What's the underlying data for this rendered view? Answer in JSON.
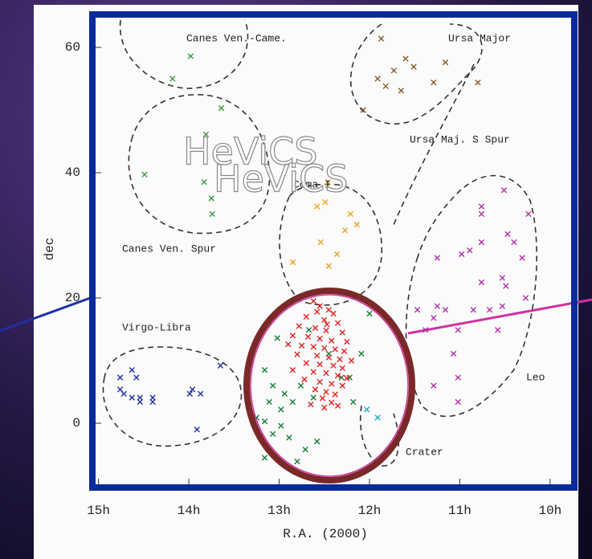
{
  "chart_data": {
    "type": "scatter",
    "xlabel": "R.A. (2000)",
    "ylabel": "dec",
    "xlim": [
      15.05,
      9.75
    ],
    "xticks": [
      {
        "value": 15,
        "label": "15h"
      },
      {
        "value": 14,
        "label": "14h"
      },
      {
        "value": 13,
        "label": "13h"
      },
      {
        "value": 12,
        "label": "12h"
      },
      {
        "value": 11,
        "label": "11h"
      },
      {
        "value": 10,
        "label": "10h"
      }
    ],
    "ylim": [
      -10,
      65
    ],
    "yticks": [
      0,
      20,
      40,
      60
    ],
    "annotations": [
      "Canes Ven.-Came.",
      "Ursa Major",
      "Ursa Maj. S Spur",
      "Coma I",
      "Canes Ven. Spur",
      "Virgo-Libra",
      "Leo",
      "Crater"
    ],
    "watermark": [
      "HeViCS",
      "HeViCS"
    ],
    "series": [
      {
        "color": "#3a9a3a",
        "x": [
          13.98,
          14.18,
          13.64,
          13.81,
          14.49,
          13.83,
          13.75,
          13.74
        ],
        "y": [
          58.6,
          55.0,
          50.3,
          46.1,
          39.7,
          38.5,
          35.9,
          33.4
        ]
      },
      {
        "color": "#8a5a2a",
        "x": [
          11.87,
          11.6,
          11.73,
          11.91,
          11.51,
          11.82,
          11.29,
          11.16,
          11.65,
          12.07,
          10.8
        ],
        "y": [
          61.4,
          58.2,
          56.3,
          55.0,
          56.9,
          53.8,
          54.4,
          57.6,
          53.1,
          50.0,
          54.4
        ]
      },
      {
        "color": "#f0a020",
        "x": [
          12.46,
          12.21,
          12.27,
          12.54,
          12.36,
          12.85,
          12.45,
          12.14,
          12.58,
          12.49
        ],
        "y": [
          38.5,
          33.4,
          30.8,
          28.9,
          27.0,
          25.7,
          25.1,
          31.7,
          34.6,
          35.3
        ]
      },
      {
        "color": "#b030a8",
        "x": [
          10.51,
          10.76,
          10.76,
          10.24,
          10.47,
          10.4,
          10.76,
          10.89,
          11.25,
          10.98,
          10.31,
          10.53,
          10.76,
          10.49,
          10.27,
          11.25,
          11.16,
          11.47,
          10.85,
          10.67,
          10.53,
          11.29,
          11.38,
          11.02,
          10.58,
          11.07,
          11.29,
          11.02,
          11.02
        ],
        "y": [
          37.2,
          34.6,
          33.4,
          33.4,
          30.2,
          28.9,
          28.9,
          27.6,
          26.4,
          27.0,
          26.4,
          23.2,
          22.5,
          21.9,
          20.0,
          18.7,
          18.1,
          18.1,
          18.1,
          18.1,
          18.7,
          16.8,
          14.9,
          14.9,
          14.9,
          11.1,
          6.0,
          7.3,
          3.4
        ]
      },
      {
        "color": "#2030a0",
        "x": [
          14.76,
          14.72,
          14.63,
          14.54,
          14.4,
          14.58,
          14.54,
          14.4,
          13.96,
          13.99,
          13.87,
          13.65,
          13.91,
          14.76,
          14.63
        ],
        "y": [
          5.4,
          4.7,
          4.1,
          4.1,
          4.1,
          7.3,
          3.4,
          3.4,
          5.4,
          4.7,
          4.7,
          9.2,
          -1.0,
          7.3,
          8.5
        ]
      },
      {
        "color": "#1a7a3a",
        "x": [
          13.11,
          13.02,
          13.16,
          13.07,
          13.11,
          12.98,
          12.85,
          12.76,
          12.62,
          12.98,
          12.89,
          12.71,
          12.8,
          13.16,
          13.25,
          13.07,
          12.94,
          12.22,
          12.09,
          12.18,
          12.58,
          12.45,
          12.31,
          13.16,
          12.0,
          12.67
        ],
        "y": [
          16.2,
          13.6,
          8.5,
          6.0,
          3.4,
          2.2,
          3.4,
          6.0,
          4.1,
          -0.4,
          -2.3,
          -4.2,
          -6.1,
          0.3,
          0.9,
          -1.7,
          4.7,
          7.3,
          11.1,
          3.4,
          -2.9,
          11.1,
          7.3,
          -5.5,
          17.5,
          14.9
        ]
      },
      {
        "color": "#e02020",
        "x": [
          12.62,
          12.55,
          12.45,
          12.4,
          12.7,
          12.5,
          12.35,
          12.78,
          12.6,
          12.48,
          12.3,
          12.85,
          12.68,
          12.55,
          12.42,
          12.25,
          12.9,
          12.75,
          12.62,
          12.5,
          12.38,
          12.28,
          12.8,
          12.58,
          12.45,
          12.33,
          12.2,
          12.7,
          12.55,
          12.4,
          12.3,
          12.85,
          12.62,
          12.48,
          12.35,
          12.25,
          12.72,
          12.55,
          12.42,
          12.3,
          12.6,
          12.48,
          12.38,
          12.52,
          12.42,
          12.5,
          12.35,
          12.65,
          12.58,
          12.47
        ],
        "y": [
          19.5,
          18.7,
          18.1,
          17.5,
          17.0,
          16.5,
          16.0,
          15.5,
          15.2,
          14.8,
          14.5,
          14.0,
          13.8,
          13.5,
          13.2,
          13.0,
          12.6,
          12.4,
          12.2,
          12.0,
          11.8,
          11.5,
          11.0,
          10.8,
          10.5,
          10.2,
          10.0,
          9.6,
          9.4,
          9.2,
          8.8,
          8.5,
          8.2,
          8.0,
          7.6,
          7.2,
          7.0,
          6.6,
          6.3,
          6.0,
          5.4,
          5.0,
          4.6,
          4.0,
          3.3,
          2.5,
          2.8,
          3.0,
          17.8,
          15.8
        ]
      },
      {
        "color": "#20a8c8",
        "x": [
          12.03,
          11.91
        ],
        "y": [
          2.2,
          0.9
        ]
      }
    ]
  }
}
